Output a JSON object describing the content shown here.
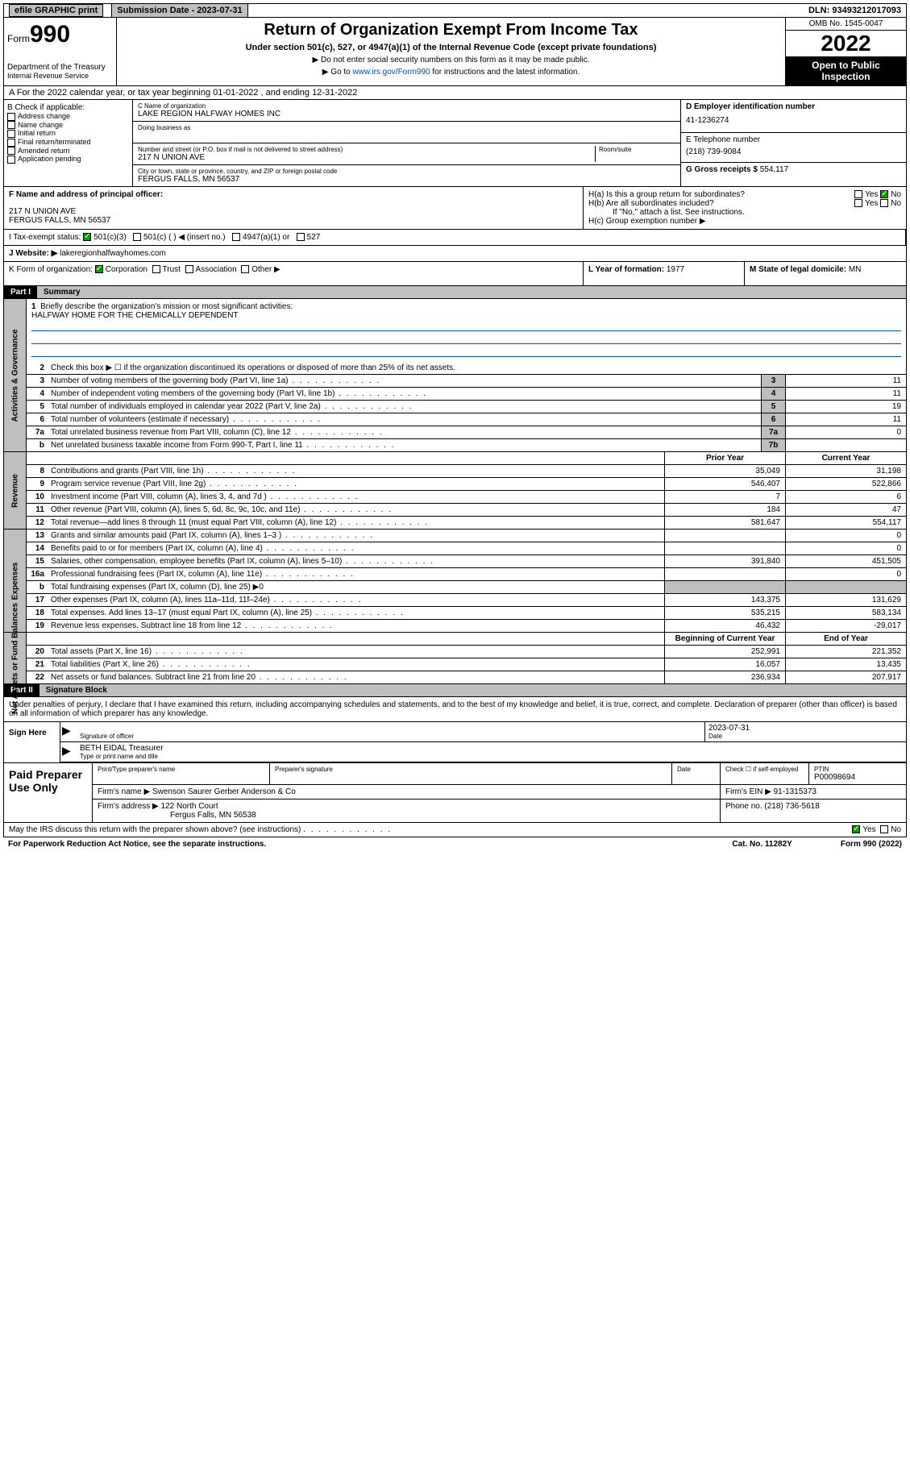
{
  "topbar": {
    "efile": "efile GRAPHIC print",
    "submission_label": "Submission Date - 2023-07-31",
    "dln": "DLN: 93493212017093"
  },
  "header": {
    "form_prefix": "Form",
    "form_number": "990",
    "dept": "Department of the Treasury",
    "irs": "Internal Revenue Service",
    "title": "Return of Organization Exempt From Income Tax",
    "sub": "Under section 501(c), 527, or 4947(a)(1) of the Internal Revenue Code (except private foundations)",
    "note1": "▶ Do not enter social security numbers on this form as it may be made public.",
    "note2_pre": "▶ Go to ",
    "note2_link": "www.irs.gov/Form990",
    "note2_post": " for instructions and the latest information.",
    "omb": "OMB No. 1545-0047",
    "year": "2022",
    "open": "Open to Public Inspection"
  },
  "rowA": "A For the 2022 calendar year, or tax year beginning 01-01-2022   , and ending 12-31-2022",
  "sectionB": {
    "label": "B Check if applicable:",
    "opts": [
      "Address change",
      "Name change",
      "Initial return",
      "Final return/terminated",
      "Amended return",
      "Application pending"
    ]
  },
  "sectionC": {
    "name_label": "C Name of organization",
    "name": "LAKE REGION HALFWAY HOMES INC",
    "dba_label": "Doing business as",
    "street_label": "Number and street (or P.O. box if mail is not delivered to street address)",
    "room_label": "Room/suite",
    "street": "217 N UNION AVE",
    "city_label": "City or town, state or province, country, and ZIP or foreign postal code",
    "city": "FERGUS FALLS, MN  56537"
  },
  "sectionD": {
    "ein_label": "D Employer identification number",
    "ein": "41-1236274",
    "phone_label": "E Telephone number",
    "phone": "(218) 739-9084",
    "gross_label": "G Gross receipts $",
    "gross": "554,117"
  },
  "sectionF": {
    "label": "F  Name and address of principal officer:",
    "addr1": "217 N UNION AVE",
    "addr2": "FERGUS FALLS, MN  56537"
  },
  "sectionH": {
    "ha": "H(a)  Is this a group return for subordinates?",
    "hb": "H(b)  Are all subordinates included?",
    "hb_note": "If \"No,\" attach a list. See instructions.",
    "hc": "H(c)  Group exemption number ▶",
    "yes": "Yes",
    "no": "No"
  },
  "sectionI": {
    "label": "I   Tax-exempt status:",
    "opts": [
      "501(c)(3)",
      "501(c) (  ) ◀ (insert no.)",
      "4947(a)(1) or",
      "527"
    ]
  },
  "sectionJ": {
    "label": "J   Website: ▶",
    "value": "lakeregionhalfwayhomes.com"
  },
  "sectionK": {
    "label": "K Form of organization:",
    "opts": [
      "Corporation",
      "Trust",
      "Association",
      "Other ▶"
    ]
  },
  "sectionL": {
    "label": "L Year of formation:",
    "value": "1977"
  },
  "sectionM": {
    "label": "M State of legal domicile:",
    "value": "MN"
  },
  "partI": {
    "tag": "Part I",
    "title": "Summary",
    "q1": "Briefly describe the organization's mission or most significant activities:",
    "mission": "HALFWAY HOME FOR THE CHEMICALLY DEPENDENT",
    "q2": "Check this box ▶ ☐  if the organization discontinued its operations or disposed of more than 25% of its net assets.",
    "rows_gov": [
      {
        "n": "3",
        "t": "Number of voting members of the governing body (Part VI, line 1a)",
        "ln": "3",
        "v": "11"
      },
      {
        "n": "4",
        "t": "Number of independent voting members of the governing body (Part VI, line 1b)",
        "ln": "4",
        "v": "11"
      },
      {
        "n": "5",
        "t": "Total number of individuals employed in calendar year 2022 (Part V, line 2a)",
        "ln": "5",
        "v": "19"
      },
      {
        "n": "6",
        "t": "Total number of volunteers (estimate if necessary)",
        "ln": "6",
        "v": "11"
      },
      {
        "n": "7a",
        "t": "Total unrelated business revenue from Part VIII, column (C), line 12",
        "ln": "7a",
        "v": "0"
      },
      {
        "n": "b",
        "t": "Net unrelated business taxable income from Form 990-T, Part I, line 11",
        "ln": "7b",
        "v": ""
      }
    ],
    "prior_label": "Prior Year",
    "current_label": "Current Year",
    "rows_rev": [
      {
        "n": "8",
        "t": "Contributions and grants (Part VIII, line 1h)",
        "p": "35,049",
        "c": "31,198"
      },
      {
        "n": "9",
        "t": "Program service revenue (Part VIII, line 2g)",
        "p": "546,407",
        "c": "522,866"
      },
      {
        "n": "10",
        "t": "Investment income (Part VIII, column (A), lines 3, 4, and 7d )",
        "p": "7",
        "c": "6"
      },
      {
        "n": "11",
        "t": "Other revenue (Part VIII, column (A), lines 5, 6d, 8c, 9c, 10c, and 11e)",
        "p": "184",
        "c": "47"
      },
      {
        "n": "12",
        "t": "Total revenue—add lines 8 through 11 (must equal Part VIII, column (A), line 12)",
        "p": "581,647",
        "c": "554,117"
      }
    ],
    "rows_exp": [
      {
        "n": "13",
        "t": "Grants and similar amounts paid (Part IX, column (A), lines 1–3 )",
        "p": "",
        "c": "0"
      },
      {
        "n": "14",
        "t": "Benefits paid to or for members (Part IX, column (A), line 4)",
        "p": "",
        "c": "0"
      },
      {
        "n": "15",
        "t": "Salaries, other compensation, employee benefits (Part IX, column (A), lines 5–10)",
        "p": "391,840",
        "c": "451,505"
      },
      {
        "n": "16a",
        "t": "Professional fundraising fees (Part IX, column (A), line 11e)",
        "p": "",
        "c": "0"
      },
      {
        "n": "b",
        "t": "Total fundraising expenses (Part IX, column (D), line 25) ▶0",
        "p": "",
        "c": "",
        "nb": true
      },
      {
        "n": "17",
        "t": "Other expenses (Part IX, column (A), lines 11a–11d, 11f–24e)",
        "p": "143,375",
        "c": "131,629"
      },
      {
        "n": "18",
        "t": "Total expenses. Add lines 13–17 (must equal Part IX, column (A), line 25)",
        "p": "535,215",
        "c": "583,134"
      },
      {
        "n": "19",
        "t": "Revenue less expenses. Subtract line 18 from line 12",
        "p": "46,432",
        "c": "-29,017"
      }
    ],
    "begin_label": "Beginning of Current Year",
    "end_label": "End of Year",
    "rows_net": [
      {
        "n": "20",
        "t": "Total assets (Part X, line 16)",
        "p": "252,991",
        "c": "221,352"
      },
      {
        "n": "21",
        "t": "Total liabilities (Part X, line 26)",
        "p": "16,057",
        "c": "13,435"
      },
      {
        "n": "22",
        "t": "Net assets or fund balances. Subtract line 21 from line 20",
        "p": "236,934",
        "c": "207,917"
      }
    ],
    "vtabs": [
      "Activities & Governance",
      "Revenue",
      "Expenses",
      "Net Assets or Fund Balances"
    ]
  },
  "partII": {
    "tag": "Part II",
    "title": "Signature Block",
    "intro": "Under penalties of perjury, I declare that I have examined this return, including accompanying schedules and statements, and to the best of my knowledge and belief, it is true, correct, and complete. Declaration of preparer (other than officer) is based on all information of which preparer has any knowledge.",
    "sign_here": "Sign Here",
    "sig_officer": "Signature of officer",
    "sig_date": "2023-07-31",
    "date_label": "Date",
    "officer_name": "BETH EIDAL Treasurer",
    "type_name": "Type or print name and title"
  },
  "paid": {
    "title": "Paid Preparer Use Only",
    "col1": "Print/Type preparer's name",
    "col2": "Preparer's signature",
    "col3": "Date",
    "col4": "Check ☐ if self-employed",
    "col5_label": "PTIN",
    "col5": "P00098694",
    "firm_name_label": "Firm's name    ▶",
    "firm_name": "Swenson Saurer Gerber Anderson & Co",
    "firm_ein_label": "Firm's EIN ▶",
    "firm_ein": "91-1315373",
    "firm_addr_label": "Firm's address ▶",
    "firm_addr1": "122 North Court",
    "firm_addr2": "Fergus Falls, MN  56538",
    "phone_label": "Phone no.",
    "phone": "(218) 736-5618"
  },
  "footer": {
    "discuss": "May the IRS discuss this return with the preparer shown above? (see instructions)",
    "yes": "Yes",
    "no": "No",
    "paperwork": "For Paperwork Reduction Act Notice, see the separate instructions.",
    "cat": "Cat. No. 11282Y",
    "form": "Form 990 (2022)"
  }
}
